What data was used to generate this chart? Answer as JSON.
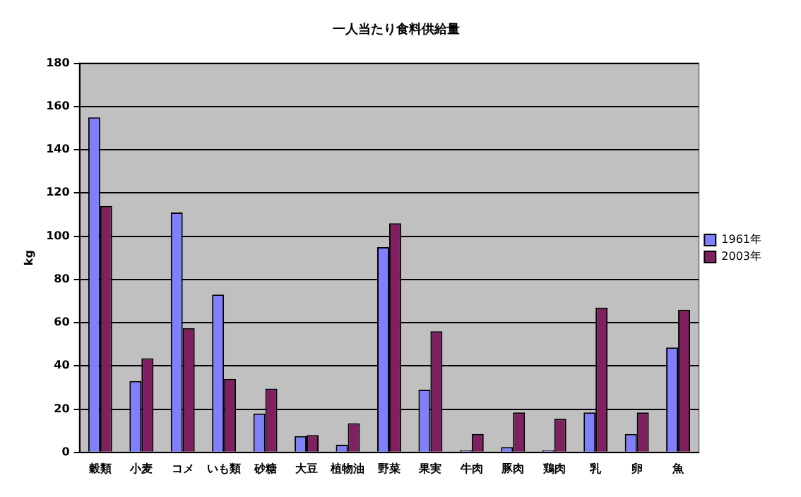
{
  "chart_data": {
    "type": "bar",
    "title": "一人当たり食料供給量",
    "ylabel": "kg",
    "categories": [
      "穀類",
      "小麦",
      "コメ",
      "いも類",
      "砂糖",
      "大豆",
      "植物油",
      "野菜",
      "果実",
      "牛肉",
      "豚肉",
      "鶏肉",
      "乳",
      "卵",
      "魚"
    ],
    "series": [
      {
        "name": "1961年",
        "color": "#8080ff",
        "values": [
          155,
          33,
          111,
          73,
          18,
          7.5,
          3.5,
          95,
          29,
          1,
          2.5,
          1,
          18.5,
          8.5,
          48.5
        ]
      },
      {
        "name": "2003年",
        "color": "#802060",
        "values": [
          114,
          43.5,
          57.5,
          34,
          29.5,
          8,
          13.5,
          106,
          56,
          8.5,
          18.5,
          15.5,
          67,
          18.5,
          66
        ]
      }
    ],
    "ylim": [
      0,
      180
    ],
    "yticks": [
      0,
      20,
      40,
      60,
      80,
      100,
      120,
      140,
      160,
      180
    ],
    "grid": "y",
    "legend": "right"
  }
}
